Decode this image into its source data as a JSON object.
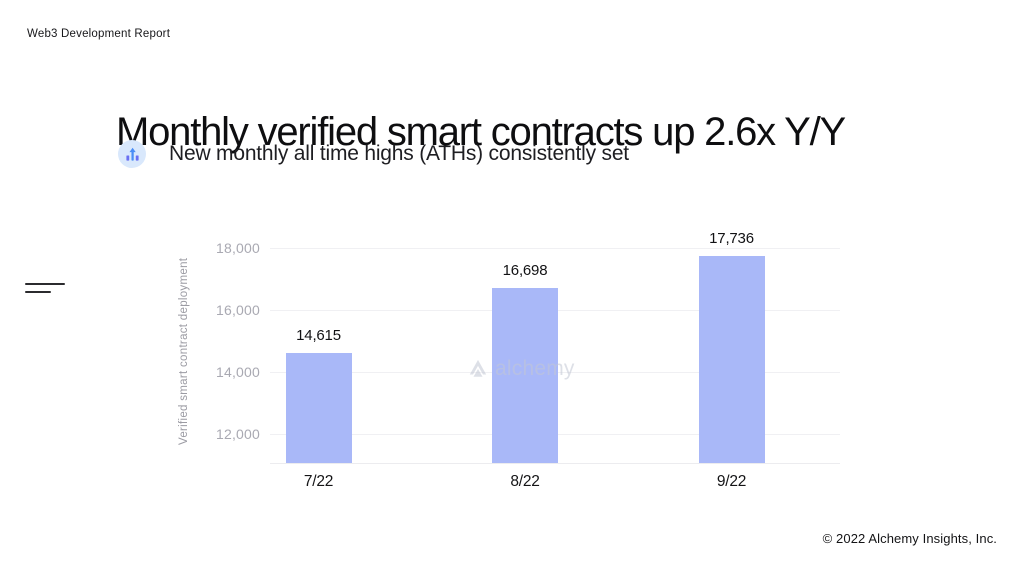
{
  "page": {
    "eyebrow": "Web3 Development Report",
    "title": "Monthly verified smart contracts up 2.6x Y/Y",
    "subtitle": "New monthly all time highs (ATHs) consistently set",
    "watermark": "alchemy",
    "footer": "© 2022 Alchemy Insights, Inc."
  },
  "icons": {
    "subtitle": "bar-chart-rising-icon",
    "watermark": "alchemy-logo-icon",
    "side": "two-lines-icon"
  },
  "colors": {
    "bar_fill": "#a9b8f8",
    "icon_circle_bg": "#d9e8fc",
    "icon_glyph_indigo": "#6a6ff2",
    "icon_glyph_blue": "#4a8df6",
    "gridline": "#f0f0f3",
    "tick_text": "#a9a9b2",
    "axis_label_text": "#9b9ba3",
    "text_dark": "#121214"
  },
  "chart_data": {
    "type": "bar",
    "title": "Monthly verified smart contracts up 2.6x Y/Y",
    "categories": [
      "7/22",
      "8/22",
      "9/22"
    ],
    "values": [
      14615,
      16698,
      17736
    ],
    "value_labels": [
      "14,615",
      "16,698",
      "17,736"
    ],
    "xlabel": "",
    "ylabel": "Verified smart contract deployment",
    "yticks": [
      12000,
      14000,
      16000,
      18000
    ],
    "ytick_labels": [
      "12,000",
      "14,000",
      "16,000",
      "18,000"
    ],
    "ylim": [
      11050,
      18250
    ],
    "grid": true,
    "legend": false,
    "bar_color": "#a9b8f8"
  }
}
